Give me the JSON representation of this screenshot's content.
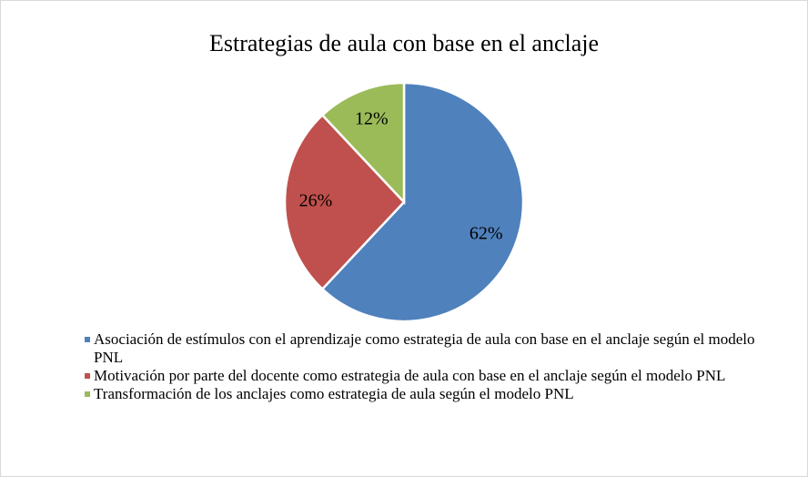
{
  "chart_data": {
    "type": "pie",
    "title": "Estrategias de aula con base en el anclaje",
    "categories": [
      "Asociación de estímulos con el aprendizaje como estrategia de aula con base en el anclaje según el modelo PNL",
      "Motivación por parte del docente como estrategia de aula con base en el anclaje según el modelo PNL",
      "Transformación de los anclajes como estrategia de aula según el modelo PNL"
    ],
    "values": [
      62,
      26,
      12
    ],
    "value_labels": [
      "62%",
      "26%",
      "12%"
    ],
    "colors": [
      "#4f81bd",
      "#c0504d",
      "#9bbb59"
    ],
    "legend": "bottom"
  }
}
